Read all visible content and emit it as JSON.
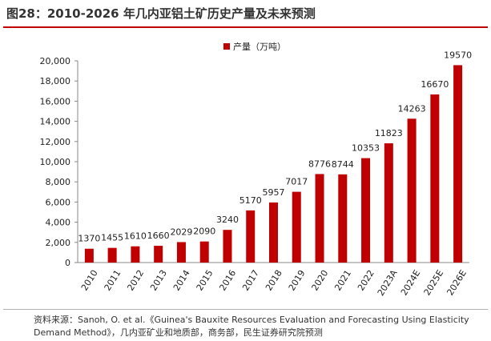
{
  "header": {
    "title": "图28：2010-2026 年几内亚铝土矿历史产量及未来预测"
  },
  "chart_data": {
    "type": "bar",
    "categories": [
      "2010",
      "2011",
      "2012",
      "2013",
      "2014",
      "2015",
      "2016",
      "2017",
      "2018",
      "2019",
      "2020",
      "2021",
      "2022",
      "2023A",
      "2024E",
      "2025E",
      "2026E"
    ],
    "series": [
      {
        "name": "产量（万吨）",
        "values": [
          1370,
          1455,
          1610,
          1660,
          2029,
          2090,
          3240,
          5170,
          5957,
          7017,
          8776,
          8744,
          10353,
          11823,
          14263,
          16670,
          19570
        ]
      }
    ],
    "data_labels": [
      "1370",
      "1455",
      "1610",
      "1660",
      "2029",
      "2090",
      "3240",
      "5170",
      "5957",
      "7017",
      "8776",
      "8744",
      "10353",
      "11823",
      "14263",
      "16670",
      "19570"
    ],
    "y_ticks": [
      "0",
      "2,000",
      "4,000",
      "6,000",
      "8,000",
      "10,000",
      "12,000",
      "14,000",
      "16,000",
      "18,000",
      "20,000"
    ],
    "ylim": [
      0,
      20000
    ],
    "legend_position": "top-center",
    "grid": false,
    "bar_color": "#c00000"
  },
  "footer": {
    "source": "资料来源：Sanoh, O. et al.《Guinea's Bauxite Resources Evaluation and Forecasting Using Elasticity Demand Method》，几内亚矿业和地质部，商务部，民生证券研究院预测"
  }
}
